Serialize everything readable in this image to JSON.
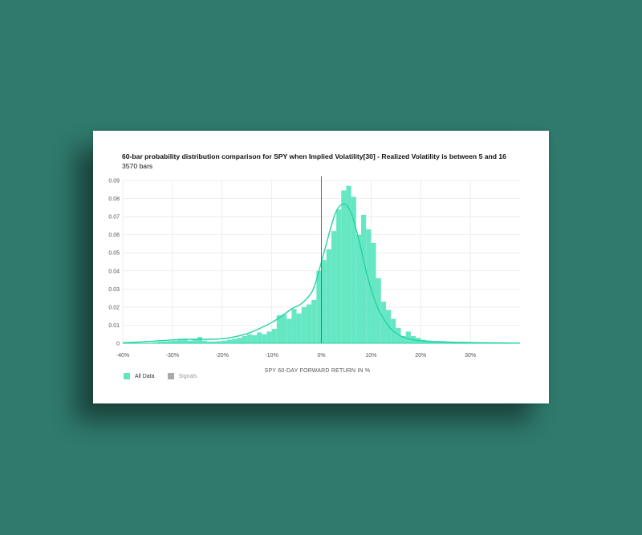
{
  "chart_data": {
    "type": "bar",
    "title": "60-bar probability distribution comparison for SPY when Implied Volatility[30] - Realized Volatility is between 5 and 16",
    "subtitle": "3570 bars",
    "xlabel": "SPY 60-DAY FORWARD RETURN IN %",
    "ylabel": "",
    "xlim": [
      -40,
      40
    ],
    "ylim": [
      0,
      0.09
    ],
    "x_ticks": [
      "-40%",
      "-30%",
      "-20%",
      "-10%",
      "0%",
      "10%",
      "20%",
      "30%"
    ],
    "x_tick_values": [
      -40,
      -30,
      -20,
      -10,
      0,
      10,
      20,
      30
    ],
    "y_ticks": [
      "0",
      "0.01",
      "0.02",
      "0.03",
      "0.04",
      "0.05",
      "0.06",
      "0.07",
      "0.08",
      "0.09"
    ],
    "y_tick_values": [
      0,
      0.01,
      0.02,
      0.03,
      0.04,
      0.05,
      0.06,
      0.07,
      0.08,
      0.09
    ],
    "vline_x": 0,
    "grid": true,
    "legend": [
      {
        "name": "All Data",
        "color": "#5ee6c0"
      },
      {
        "name": "Signals",
        "color": "#a9a9a9"
      }
    ],
    "series": [
      {
        "name": "All Data",
        "color": "#5ee6c0",
        "bin_width": 1,
        "bin_start": [
          -34,
          -33,
          -32,
          -31,
          -30,
          -29,
          -28,
          -27,
          -26,
          -25,
          -24,
          -23,
          -22,
          -21,
          -20,
          -19,
          -18,
          -17,
          -16,
          -15,
          -14,
          -13,
          -12,
          -11,
          -10,
          -9,
          -8,
          -7,
          -6,
          -5,
          -4,
          -3,
          -2,
          -1,
          0,
          1,
          2,
          3,
          4,
          5,
          6,
          7,
          8,
          9,
          10,
          11,
          12,
          13,
          14,
          15,
          16,
          17,
          18,
          19,
          20,
          21,
          22,
          23,
          24,
          25,
          26,
          27,
          28,
          29,
          30,
          31,
          32,
          33,
          34,
          35,
          36,
          37
        ],
        "values": [
          0.0005,
          0.0008,
          0.001,
          0.0012,
          0.0015,
          0.002,
          0.0025,
          0.0015,
          0.002,
          0.0035,
          0.0015,
          0.001,
          0.001,
          0.0012,
          0.0015,
          0.002,
          0.0025,
          0.003,
          0.004,
          0.005,
          0.0045,
          0.006,
          0.005,
          0.0065,
          0.008,
          0.0155,
          0.016,
          0.0135,
          0.019,
          0.0165,
          0.02,
          0.0215,
          0.024,
          0.04,
          0.046,
          0.052,
          0.062,
          0.074,
          0.0845,
          0.087,
          0.081,
          0.06,
          0.071,
          0.063,
          0.0555,
          0.036,
          0.023,
          0.0185,
          0.0135,
          0.0085,
          0.004,
          0.0065,
          0.004,
          0.003,
          0.002,
          0.0015,
          0.001,
          0.0012,
          0.0012,
          0.0008,
          0.0005,
          0.0005,
          0.0004,
          0.0003,
          0.0003,
          0.0002,
          0.0002,
          0.0002,
          0.0001,
          0.0001,
          0.0001,
          0.0001
        ]
      }
    ],
    "kde": {
      "name": "All Data",
      "color": "#23d3a5",
      "x": [
        -40,
        -36,
        -32,
        -28,
        -24,
        -20,
        -16,
        -13,
        -10,
        -8,
        -6,
        -4,
        -2,
        -1,
        0,
        1,
        2,
        3,
        4,
        5,
        6,
        7,
        8,
        9,
        10,
        11,
        12,
        14,
        16,
        18,
        20,
        24,
        28,
        32,
        36,
        40
      ],
      "y": [
        0.0003,
        0.0008,
        0.0015,
        0.0022,
        0.0022,
        0.0025,
        0.0045,
        0.0075,
        0.0115,
        0.015,
        0.019,
        0.022,
        0.028,
        0.035,
        0.045,
        0.055,
        0.065,
        0.073,
        0.0765,
        0.0765,
        0.072,
        0.063,
        0.052,
        0.04,
        0.03,
        0.022,
        0.016,
        0.008,
        0.004,
        0.0022,
        0.0014,
        0.0008,
        0.0005,
        0.0003,
        0.0002,
        0.0001
      ]
    }
  }
}
